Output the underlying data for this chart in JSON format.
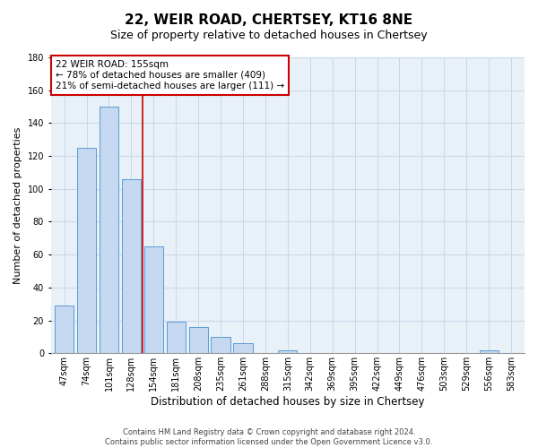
{
  "title": "22, WEIR ROAD, CHERTSEY, KT16 8NE",
  "subtitle": "Size of property relative to detached houses in Chertsey",
  "xlabel": "Distribution of detached houses by size in Chertsey",
  "ylabel": "Number of detached properties",
  "bar_labels": [
    "47sqm",
    "74sqm",
    "101sqm",
    "128sqm",
    "154sqm",
    "181sqm",
    "208sqm",
    "235sqm",
    "261sqm",
    "288sqm",
    "315sqm",
    "342sqm",
    "369sqm",
    "395sqm",
    "422sqm",
    "449sqm",
    "476sqm",
    "503sqm",
    "529sqm",
    "556sqm",
    "583sqm"
  ],
  "bar_values": [
    29,
    125,
    150,
    106,
    65,
    19,
    16,
    10,
    6,
    0,
    2,
    0,
    0,
    0,
    0,
    0,
    0,
    0,
    0,
    2,
    0
  ],
  "bar_color": "#c5d8f0",
  "bar_edge_color": "#5b9bd5",
  "annotation_title": "22 WEIR ROAD: 155sqm",
  "annotation_line1": "← 78% of detached houses are smaller (409)",
  "annotation_line2": "21% of semi-detached houses are larger (111) →",
  "annotation_box_color": "#ffffff",
  "annotation_box_edge_color": "#cc0000",
  "vline_x": 3.5,
  "vline_color": "#cc0000",
  "ylim": [
    0,
    180
  ],
  "yticks": [
    0,
    20,
    40,
    60,
    80,
    100,
    120,
    140,
    160,
    180
  ],
  "plot_bg_color": "#e8f0f8",
  "figure_bg_color": "#ffffff",
  "grid_color": "#c8d8e8",
  "footnote1": "Contains HM Land Registry data © Crown copyright and database right 2024.",
  "footnote2": "Contains public sector information licensed under the Open Government Licence v3.0.",
  "title_fontsize": 11,
  "subtitle_fontsize": 9,
  "ylabel_fontsize": 8,
  "xlabel_fontsize": 8.5,
  "tick_fontsize": 7,
  "annotation_fontsize": 7.5,
  "footnote_fontsize": 6
}
